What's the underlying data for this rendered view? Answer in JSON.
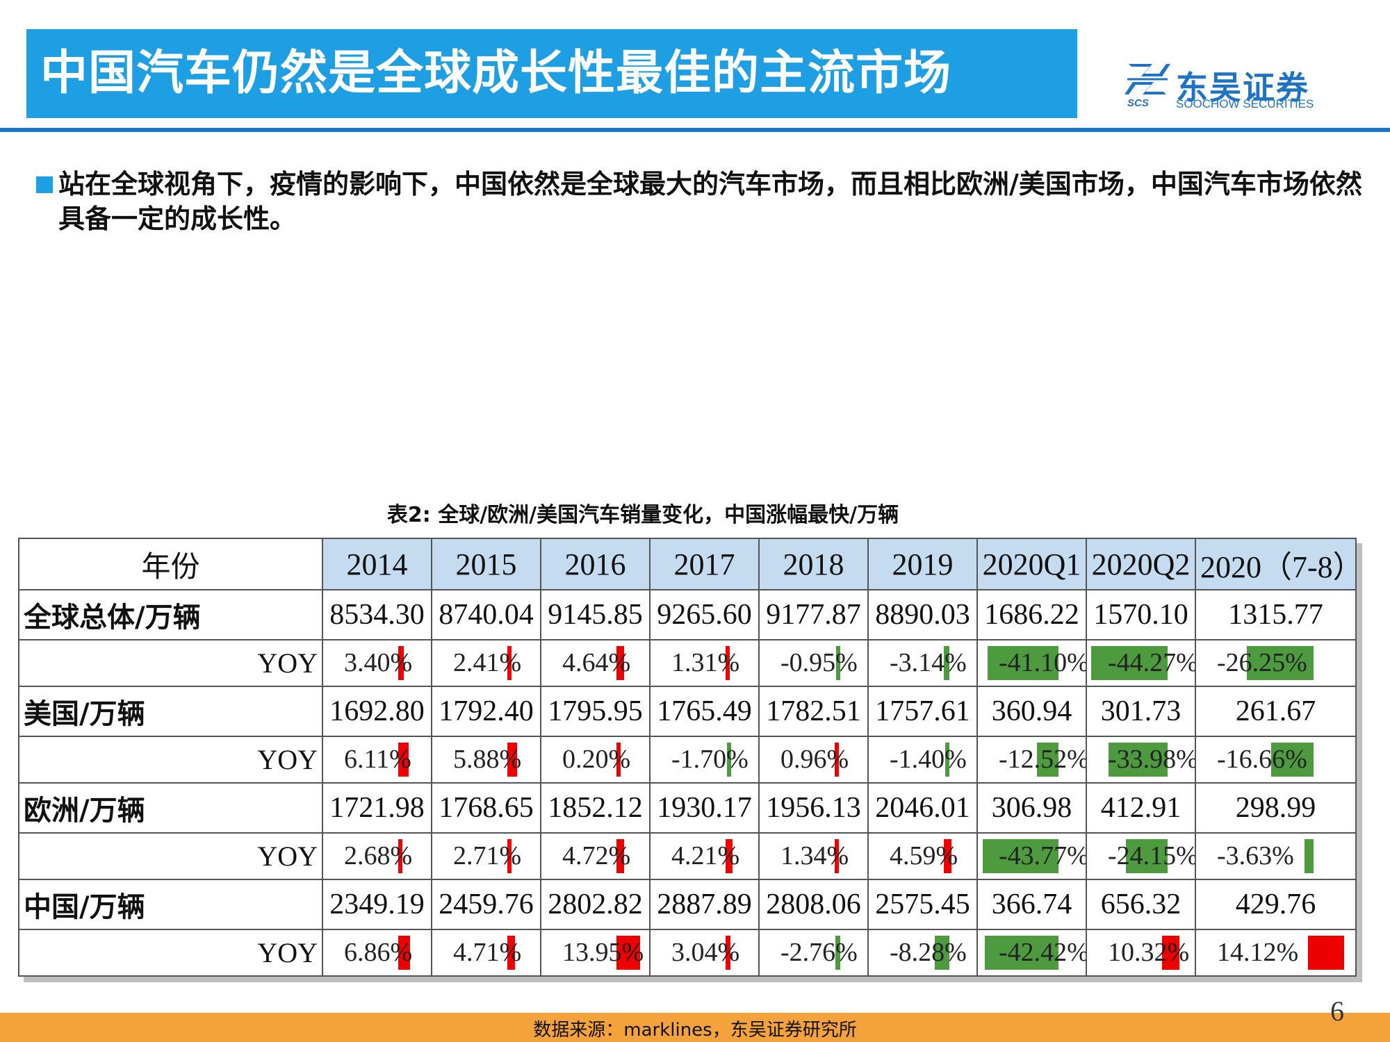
{
  "header": {
    "title": "中国汽车仍然是全球成长性最佳的主流市场",
    "logo_cn": "东吴证券",
    "logo_en": "SOOCHOW SECURITIES",
    "logo_scs": "SCS"
  },
  "bullet": {
    "text": "站在全球视角下，疫情的影响下，中国依然是全球最大的汽车市场，而且相比欧洲/美国市场，中国汽车市场依然具备一定的成长性。"
  },
  "table": {
    "caption": "表2:  全球/欧洲/美国汽车销量变化，中国涨幅最快/万辆",
    "header_label": "年份",
    "columns": [
      "2014",
      "2015",
      "2016",
      "2017",
      "2018",
      "2019",
      "2020Q1",
      "2020Q2",
      "2020（7-8）"
    ],
    "rows": [
      {
        "label": "全球总体/万辆",
        "values": [
          "8534.30",
          "8740.04",
          "9145.85",
          "9265.60",
          "9177.87",
          "8890.03",
          "1686.22",
          "1570.10",
          "1315.77"
        ],
        "yoy_label": "YOY",
        "yoy": [
          "3.40%",
          "2.41%",
          "4.64%",
          "1.31%",
          "-0.95%",
          "-3.14%",
          "-41.10%",
          "-44.27%",
          "-26.25%"
        ],
        "yoy_num": [
          3.4,
          2.41,
          4.64,
          1.31,
          -0.95,
          -3.14,
          -41.1,
          -44.27,
          -26.25
        ]
      },
      {
        "label": "美国/万辆",
        "values": [
          "1692.80",
          "1792.40",
          "1795.95",
          "1765.49",
          "1782.51",
          "1757.61",
          "360.94",
          "301.73",
          "261.67"
        ],
        "yoy_label": "YOY",
        "yoy": [
          "6.11%",
          "5.88%",
          "0.20%",
          "-1.70%",
          "0.96%",
          "-1.40%",
          "-12.52%",
          "-33.98%",
          "-16.66%"
        ],
        "yoy_num": [
          6.11,
          5.88,
          0.2,
          -1.7,
          0.96,
          -1.4,
          -12.52,
          -33.98,
          -16.66
        ]
      },
      {
        "label": "欧洲/万辆",
        "values": [
          "1721.98",
          "1768.65",
          "1852.12",
          "1930.17",
          "1956.13",
          "2046.01",
          "306.98",
          "412.91",
          "298.99"
        ],
        "yoy_label": "YOY",
        "yoy": [
          "2.68%",
          "2.71%",
          "4.72%",
          "4.21%",
          "1.34%",
          "4.59%",
          "-43.77%",
          "-24.15%",
          "-3.63%"
        ],
        "yoy_num": [
          2.68,
          2.71,
          4.72,
          4.21,
          1.34,
          4.59,
          -43.77,
          -24.15,
          -3.63
        ]
      },
      {
        "label": "中国/万辆",
        "values": [
          "2349.19",
          "2459.76",
          "2802.82",
          "2887.89",
          "2808.06",
          "2575.45",
          "366.74",
          "656.32",
          "429.76"
        ],
        "yoy_label": "YOY",
        "yoy": [
          "6.86%",
          "4.71%",
          "13.95%",
          "3.04%",
          "-2.76%",
          "-8.28%",
          "-42.42%",
          "10.32%",
          "14.12%"
        ],
        "yoy_num": [
          6.86,
          4.71,
          13.95,
          3.04,
          -2.76,
          -8.28,
          -42.42,
          10.32,
          14.12
        ]
      }
    ]
  },
  "colors": {
    "title_bg": "#1e9fe3",
    "positive_bar": "#ee0000",
    "negative_bar": "#4e9a3e",
    "header_bg": "#c5dcf0",
    "footer_bg": "#f4a23c"
  },
  "footer": {
    "source": "数据来源：marklines，东吴证券研究所",
    "page": "6"
  }
}
